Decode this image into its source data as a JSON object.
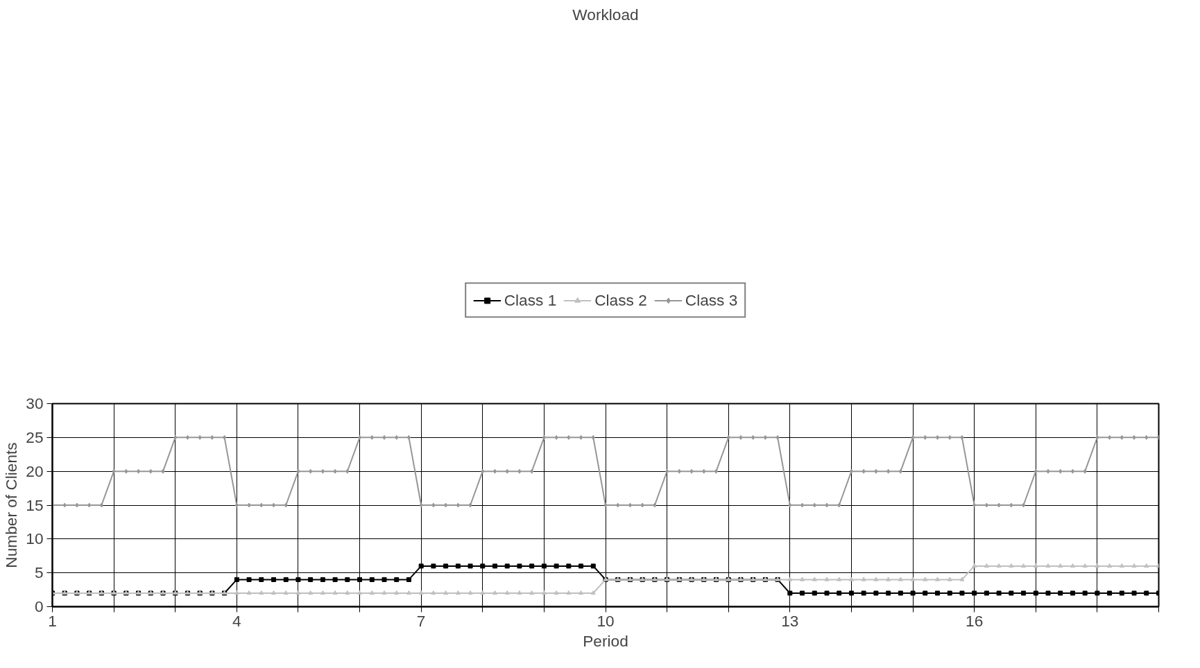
{
  "chart_data": {
    "type": "line",
    "title": "Workload",
    "xlabel": "Period",
    "ylabel": "Number of Clients",
    "x": [
      1,
      1.2,
      1.4,
      1.6,
      1.8,
      2,
      2.2,
      2.4,
      2.6,
      2.8,
      3,
      3.2,
      3.4,
      3.6,
      3.8,
      4,
      4.2,
      4.4,
      4.6,
      4.8,
      5,
      5.2,
      5.4,
      5.6,
      5.8,
      6,
      6.2,
      6.4,
      6.6,
      6.8,
      7,
      7.2,
      7.4,
      7.6,
      7.8,
      8,
      8.2,
      8.4,
      8.6,
      8.8,
      9,
      9.2,
      9.4,
      9.6,
      9.8,
      10,
      10.2,
      10.4,
      10.6,
      10.8,
      11,
      11.2,
      11.4,
      11.6,
      11.8,
      12,
      12.2,
      12.4,
      12.6,
      12.8,
      13,
      13.2,
      13.4,
      13.6,
      13.8,
      14,
      14.2,
      14.4,
      14.6,
      14.8,
      15,
      15.2,
      15.4,
      15.6,
      15.8,
      16,
      16.2,
      16.4,
      16.6,
      16.8,
      17,
      17.2,
      17.4,
      17.6,
      17.8,
      18,
      18.2,
      18.4,
      18.6,
      18.8,
      19
    ],
    "series": [
      {
        "name": "Class 1",
        "color": "#000000",
        "marker": "square",
        "values": [
          2,
          2,
          2,
          2,
          2,
          2,
          2,
          2,
          2,
          2,
          2,
          2,
          2,
          2,
          2,
          4,
          4,
          4,
          4,
          4,
          4,
          4,
          4,
          4,
          4,
          4,
          4,
          4,
          4,
          4,
          6,
          6,
          6,
          6,
          6,
          6,
          6,
          6,
          6,
          6,
          6,
          6,
          6,
          6,
          6,
          4,
          4,
          4,
          4,
          4,
          4,
          4,
          4,
          4,
          4,
          4,
          4,
          4,
          4,
          4,
          2,
          2,
          2,
          2,
          2,
          2,
          2,
          2,
          2,
          2,
          2,
          2,
          2,
          2,
          2,
          2,
          2,
          2,
          2,
          2,
          2,
          2,
          2,
          2,
          2,
          2,
          2,
          2,
          2,
          2,
          2
        ]
      },
      {
        "name": "Class 2",
        "color": "#c0c0c0",
        "marker": "triangle",
        "values": [
          2,
          2,
          2,
          2,
          2,
          2,
          2,
          2,
          2,
          2,
          2,
          2,
          2,
          2,
          2,
          2,
          2,
          2,
          2,
          2,
          2,
          2,
          2,
          2,
          2,
          2,
          2,
          2,
          2,
          2,
          2,
          2,
          2,
          2,
          2,
          2,
          2,
          2,
          2,
          2,
          2,
          2,
          2,
          2,
          2,
          4,
          4,
          4,
          4,
          4,
          4,
          4,
          4,
          4,
          4,
          4,
          4,
          4,
          4,
          4,
          4,
          4,
          4,
          4,
          4,
          4,
          4,
          4,
          4,
          4,
          4,
          4,
          4,
          4,
          4,
          6,
          6,
          6,
          6,
          6,
          6,
          6,
          6,
          6,
          6,
          6,
          6,
          6,
          6,
          6,
          6
        ]
      },
      {
        "name": "Class 3",
        "color": "#969696",
        "marker": "diamond",
        "values": [
          15,
          15,
          15,
          15,
          15,
          20,
          20,
          20,
          20,
          20,
          25,
          25,
          25,
          25,
          25,
          15,
          15,
          15,
          15,
          15,
          20,
          20,
          20,
          20,
          20,
          25,
          25,
          25,
          25,
          25,
          15,
          15,
          15,
          15,
          15,
          20,
          20,
          20,
          20,
          20,
          25,
          25,
          25,
          25,
          25,
          15,
          15,
          15,
          15,
          15,
          20,
          20,
          20,
          20,
          20,
          25,
          25,
          25,
          25,
          25,
          15,
          15,
          15,
          15,
          15,
          20,
          20,
          20,
          20,
          20,
          25,
          25,
          25,
          25,
          25,
          15,
          15,
          15,
          15,
          15,
          20,
          20,
          20,
          20,
          20,
          25,
          25,
          25,
          25,
          25,
          25
        ]
      }
    ],
    "xlim": [
      1,
      19
    ],
    "xticks": [
      1,
      {
        "value": 2,
        "label": null
      },
      {
        "value": 3,
        "label": null
      },
      4,
      {
        "value": 5,
        "label": null
      },
      {
        "value": 6,
        "label": null
      },
      7,
      {
        "value": 8,
        "label": null
      },
      {
        "value": 9,
        "label": null
      },
      10,
      {
        "value": 11,
        "label": null
      },
      {
        "value": 12,
        "label": null
      },
      13,
      {
        "value": 14,
        "label": null
      },
      {
        "value": 15,
        "label": null
      },
      16,
      {
        "value": 17,
        "label": null
      },
      {
        "value": 18,
        "label": null
      },
      {
        "value": 19,
        "label": null
      }
    ],
    "ylim": [
      0,
      30
    ],
    "yticks": [
      0,
      5,
      10,
      15,
      20,
      25,
      30
    ],
    "grid": true,
    "legend": "top"
  }
}
